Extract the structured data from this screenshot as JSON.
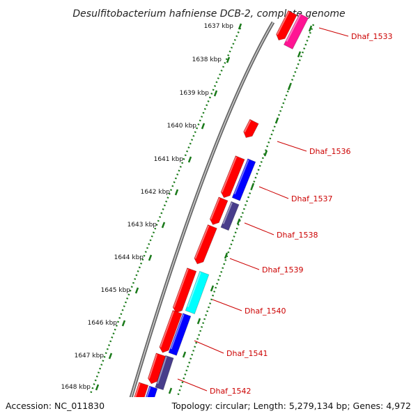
{
  "title": "Desulfitobacterium hafniense DCB-2, complete genome",
  "footer": {
    "accession": "Accession: NC_011830",
    "topology": "Topology: circular; Length: 5,279,134 bp; Genes: 4,972"
  },
  "colors": {
    "forward_gene": "#ff0000",
    "pink_gene": "#ff1493",
    "blue_gene": "#0000ff",
    "slate_gene": "#483d8b",
    "cyan_gene": "#00ffff",
    "scale_tick": "#1a7a1a",
    "label": "#cc0000",
    "backbone": "#888888"
  },
  "kbp_labels": [
    "1637 kbp",
    "1638 kbp",
    "1639 kbp",
    "1640 kbp",
    "1641 kbp",
    "1642 kbp",
    "1643 kbp",
    "1644 kbp",
    "1645 kbp",
    "1646 kbp",
    "1647 kbp",
    "1648 kbp"
  ],
  "gene_labels": [
    "Dhaf_1533",
    "Dhaf_1536",
    "Dhaf_1537",
    "Dhaf_1538",
    "Dhaf_1539",
    "Dhaf_1540",
    "Dhaf_1541",
    "Dhaf_1542"
  ]
}
